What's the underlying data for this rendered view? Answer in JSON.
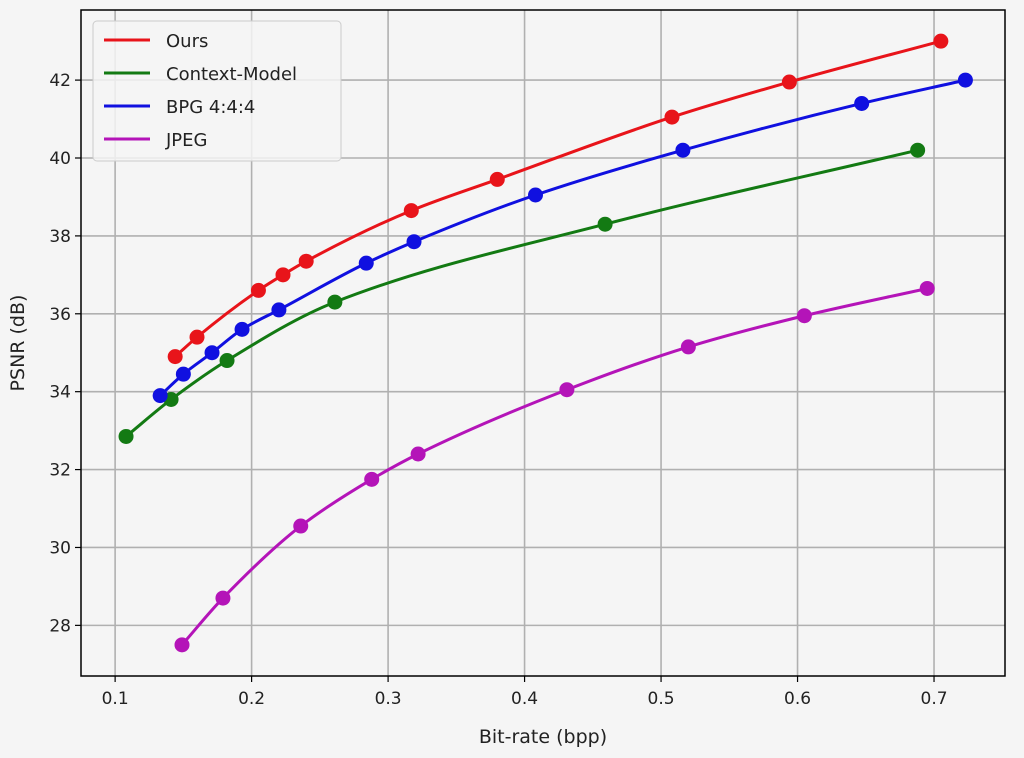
{
  "chart_data": {
    "type": "line",
    "xlabel": "Bit-rate (bpp)",
    "ylabel": "PSNR (dB)",
    "xlim": [
      0.075,
      0.752
    ],
    "ylim": [
      26.7,
      43.8
    ],
    "xticks": [
      0.1,
      0.2,
      0.3,
      0.4,
      0.5,
      0.6,
      0.7
    ],
    "xtick_labels": [
      "0.1",
      "0.2",
      "0.3",
      "0.4",
      "0.5",
      "0.6",
      "0.7"
    ],
    "yticks": [
      28,
      30,
      32,
      34,
      36,
      38,
      40,
      42
    ],
    "ytick_labels": [
      "28",
      "30",
      "32",
      "34",
      "36",
      "38",
      "40",
      "42"
    ],
    "grid": true,
    "legend_position": "top-left",
    "series": [
      {
        "name": "Ours",
        "color": "#e8141a",
        "x": [
          0.144,
          0.16,
          0.205,
          0.223,
          0.24,
          0.317,
          0.38,
          0.508,
          0.594,
          0.705
        ],
        "y": [
          34.9,
          35.4,
          36.6,
          37.0,
          37.35,
          38.65,
          39.45,
          41.05,
          41.95,
          43.0
        ]
      },
      {
        "name": "Context-Model",
        "color": "#137a13",
        "x": [
          0.108,
          0.141,
          0.182,
          0.261,
          0.459,
          0.688
        ],
        "y": [
          32.85,
          33.8,
          34.8,
          36.3,
          38.3,
          40.2
        ]
      },
      {
        "name": "BPG 4:4:4",
        "color": "#1010e0",
        "x": [
          0.133,
          0.15,
          0.171,
          0.193,
          0.22,
          0.284,
          0.319,
          0.408,
          0.516,
          0.647,
          0.723
        ],
        "y": [
          33.9,
          34.45,
          35.0,
          35.6,
          36.1,
          37.3,
          37.85,
          39.05,
          40.2,
          41.4,
          42.0
        ]
      },
      {
        "name": "JPEG",
        "color": "#b414b8",
        "x": [
          0.149,
          0.179,
          0.236,
          0.288,
          0.322,
          0.431,
          0.52,
          0.605,
          0.695
        ],
        "y": [
          27.5,
          28.7,
          30.55,
          31.75,
          32.4,
          34.05,
          35.15,
          35.95,
          36.65
        ]
      }
    ]
  }
}
